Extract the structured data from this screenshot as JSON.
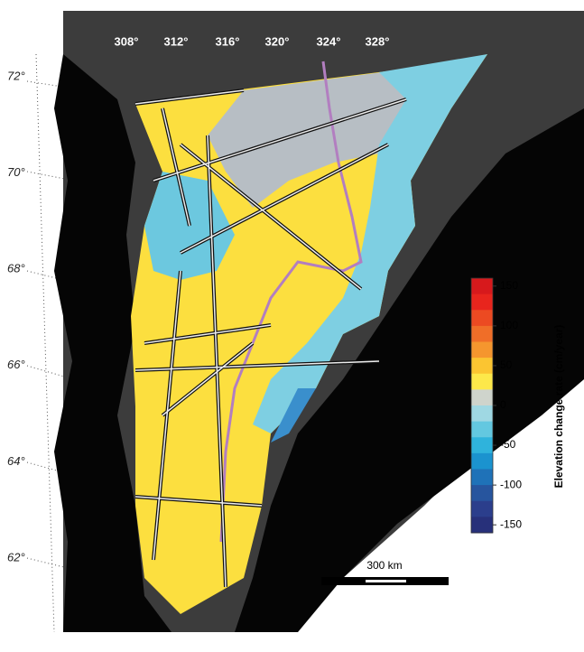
{
  "map": {
    "lon_labels": [
      "308°",
      "312°",
      "316°",
      "320°",
      "324°",
      "328°"
    ],
    "lat_labels": [
      "72°",
      "70°",
      "68°",
      "66°",
      "64°",
      "62°"
    ],
    "colorbar": {
      "label": "Elevation change rate (cm/year)",
      "clim": [
        -160,
        160
      ],
      "ticks": [
        150,
        100,
        50,
        0,
        -50,
        -100,
        -150
      ],
      "colors": [
        "#d7191c",
        "#e8251d",
        "#ec4a22",
        "#f06e28",
        "#f5962e",
        "#fbc531",
        "#fde84a",
        "#cfd4cc",
        "#9fd8e3",
        "#63c8e0",
        "#2fb3dc",
        "#1b93cf",
        "#1f72b8",
        "#27559e",
        "#2b3e8c",
        "#27307a"
      ]
    },
    "scale_bar": "300 km"
  }
}
